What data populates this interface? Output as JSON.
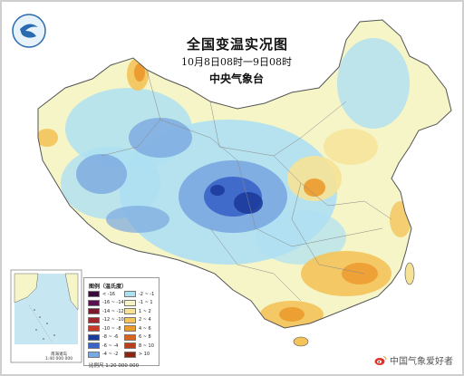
{
  "map": {
    "title": "全国变温实况图",
    "subtitle": "10月8日08时一9日08时",
    "agency": "中央气象台"
  },
  "legend": {
    "title": "图例（温氏度）",
    "items": [
      {
        "label": "< -16",
        "color": "#3a0a3a"
      },
      {
        "label": "-16 ~ -14",
        "color": "#5a1050"
      },
      {
        "label": "-14 ~ -12",
        "color": "#7a1a2a"
      },
      {
        "label": "-12 ~ -10",
        "color": "#a0282a"
      },
      {
        "label": "-10 ~ -8",
        "color": "#c83a2a"
      },
      {
        "label": "-8 ~ -6",
        "color": "#1c3c9c"
      },
      {
        "label": "-6 ~ -4",
        "color": "#3a64c8"
      },
      {
        "label": "-4 ~ -2",
        "color": "#7aa8e0"
      },
      {
        "label": "-2 ~ -1",
        "color": "#aee0f2"
      },
      {
        "label": "-1 ~ 1",
        "color": "#f5f5c8"
      },
      {
        "label": "1 ~ 2",
        "color": "#f6e296"
      },
      {
        "label": "2 ~ 4",
        "color": "#f4c45a"
      },
      {
        "label": "4 ~ 6",
        "color": "#eb9a2e"
      },
      {
        "label": "6 ~ 8",
        "color": "#d7651e"
      },
      {
        "label": "8 ~ 10",
        "color": "#b8401a"
      },
      {
        "label": "> 10",
        "color": "#8c2412"
      }
    ]
  },
  "inset": {
    "sea_label": "南海诸岛",
    "scale_note": "1:40 000 000"
  },
  "scale": "比例尺  1:20 000 000",
  "watermark": "中国气象爱好者"
}
